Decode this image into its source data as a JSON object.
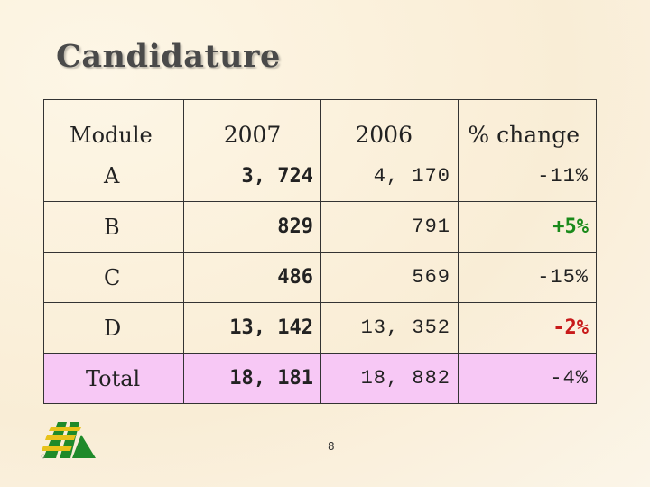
{
  "title": "Candidature",
  "table": {
    "headers": [
      "Module",
      "2007",
      "2006",
      "% change"
    ],
    "rows": [
      {
        "module": "A",
        "y2007": "3, 724",
        "y2006": "4, 170",
        "change": "-11%"
      },
      {
        "module": "B",
        "y2007": "829",
        "y2006": "791",
        "change": "+5%"
      },
      {
        "module": "C",
        "y2007": "486",
        "y2006": "569",
        "change": "-15%"
      },
      {
        "module": "D",
        "y2007": "13, 142",
        "y2006": "13, 352",
        "change": "-2%"
      }
    ],
    "total": {
      "module": "Total",
      "y2007": "18, 181",
      "y2006": "18, 882",
      "change": "-4%"
    }
  },
  "colors": {
    "total_row": "#f7c8f5",
    "negative": "#c81a1a",
    "positive": "#1a8a1a"
  },
  "page_number": "8",
  "logo": {
    "icon": "logo-icon"
  }
}
